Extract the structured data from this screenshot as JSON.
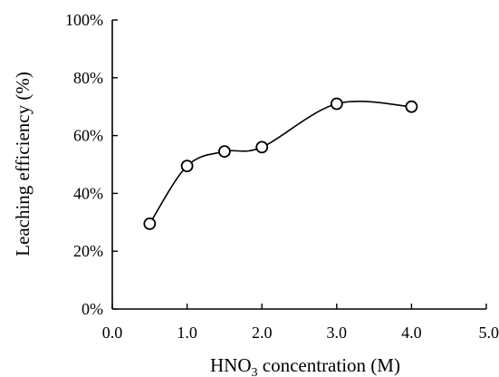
{
  "chart_data": {
    "type": "scatter",
    "xlabel_main": "HNO",
    "xlabel_sub": "3",
    "xlabel_rest": " concentration (M)",
    "ylabel": "Leaching efficiency (%)",
    "xlim": [
      0,
      5
    ],
    "ylim": [
      0,
      100
    ],
    "x_ticks": [
      "0.0",
      "1.0",
      "2.0",
      "3.0",
      "4.0",
      "5.0"
    ],
    "y_ticks": [
      "0%",
      "20%",
      "40%",
      "60%",
      "80%",
      "100%"
    ],
    "grid": false,
    "series": [
      {
        "marker": "open-circle",
        "line": "smooth",
        "x": [
          0.5,
          1.0,
          1.5,
          2.0,
          3.0,
          4.0
        ],
        "y": [
          29.5,
          49.5,
          54.5,
          56,
          71,
          70
        ]
      }
    ]
  }
}
